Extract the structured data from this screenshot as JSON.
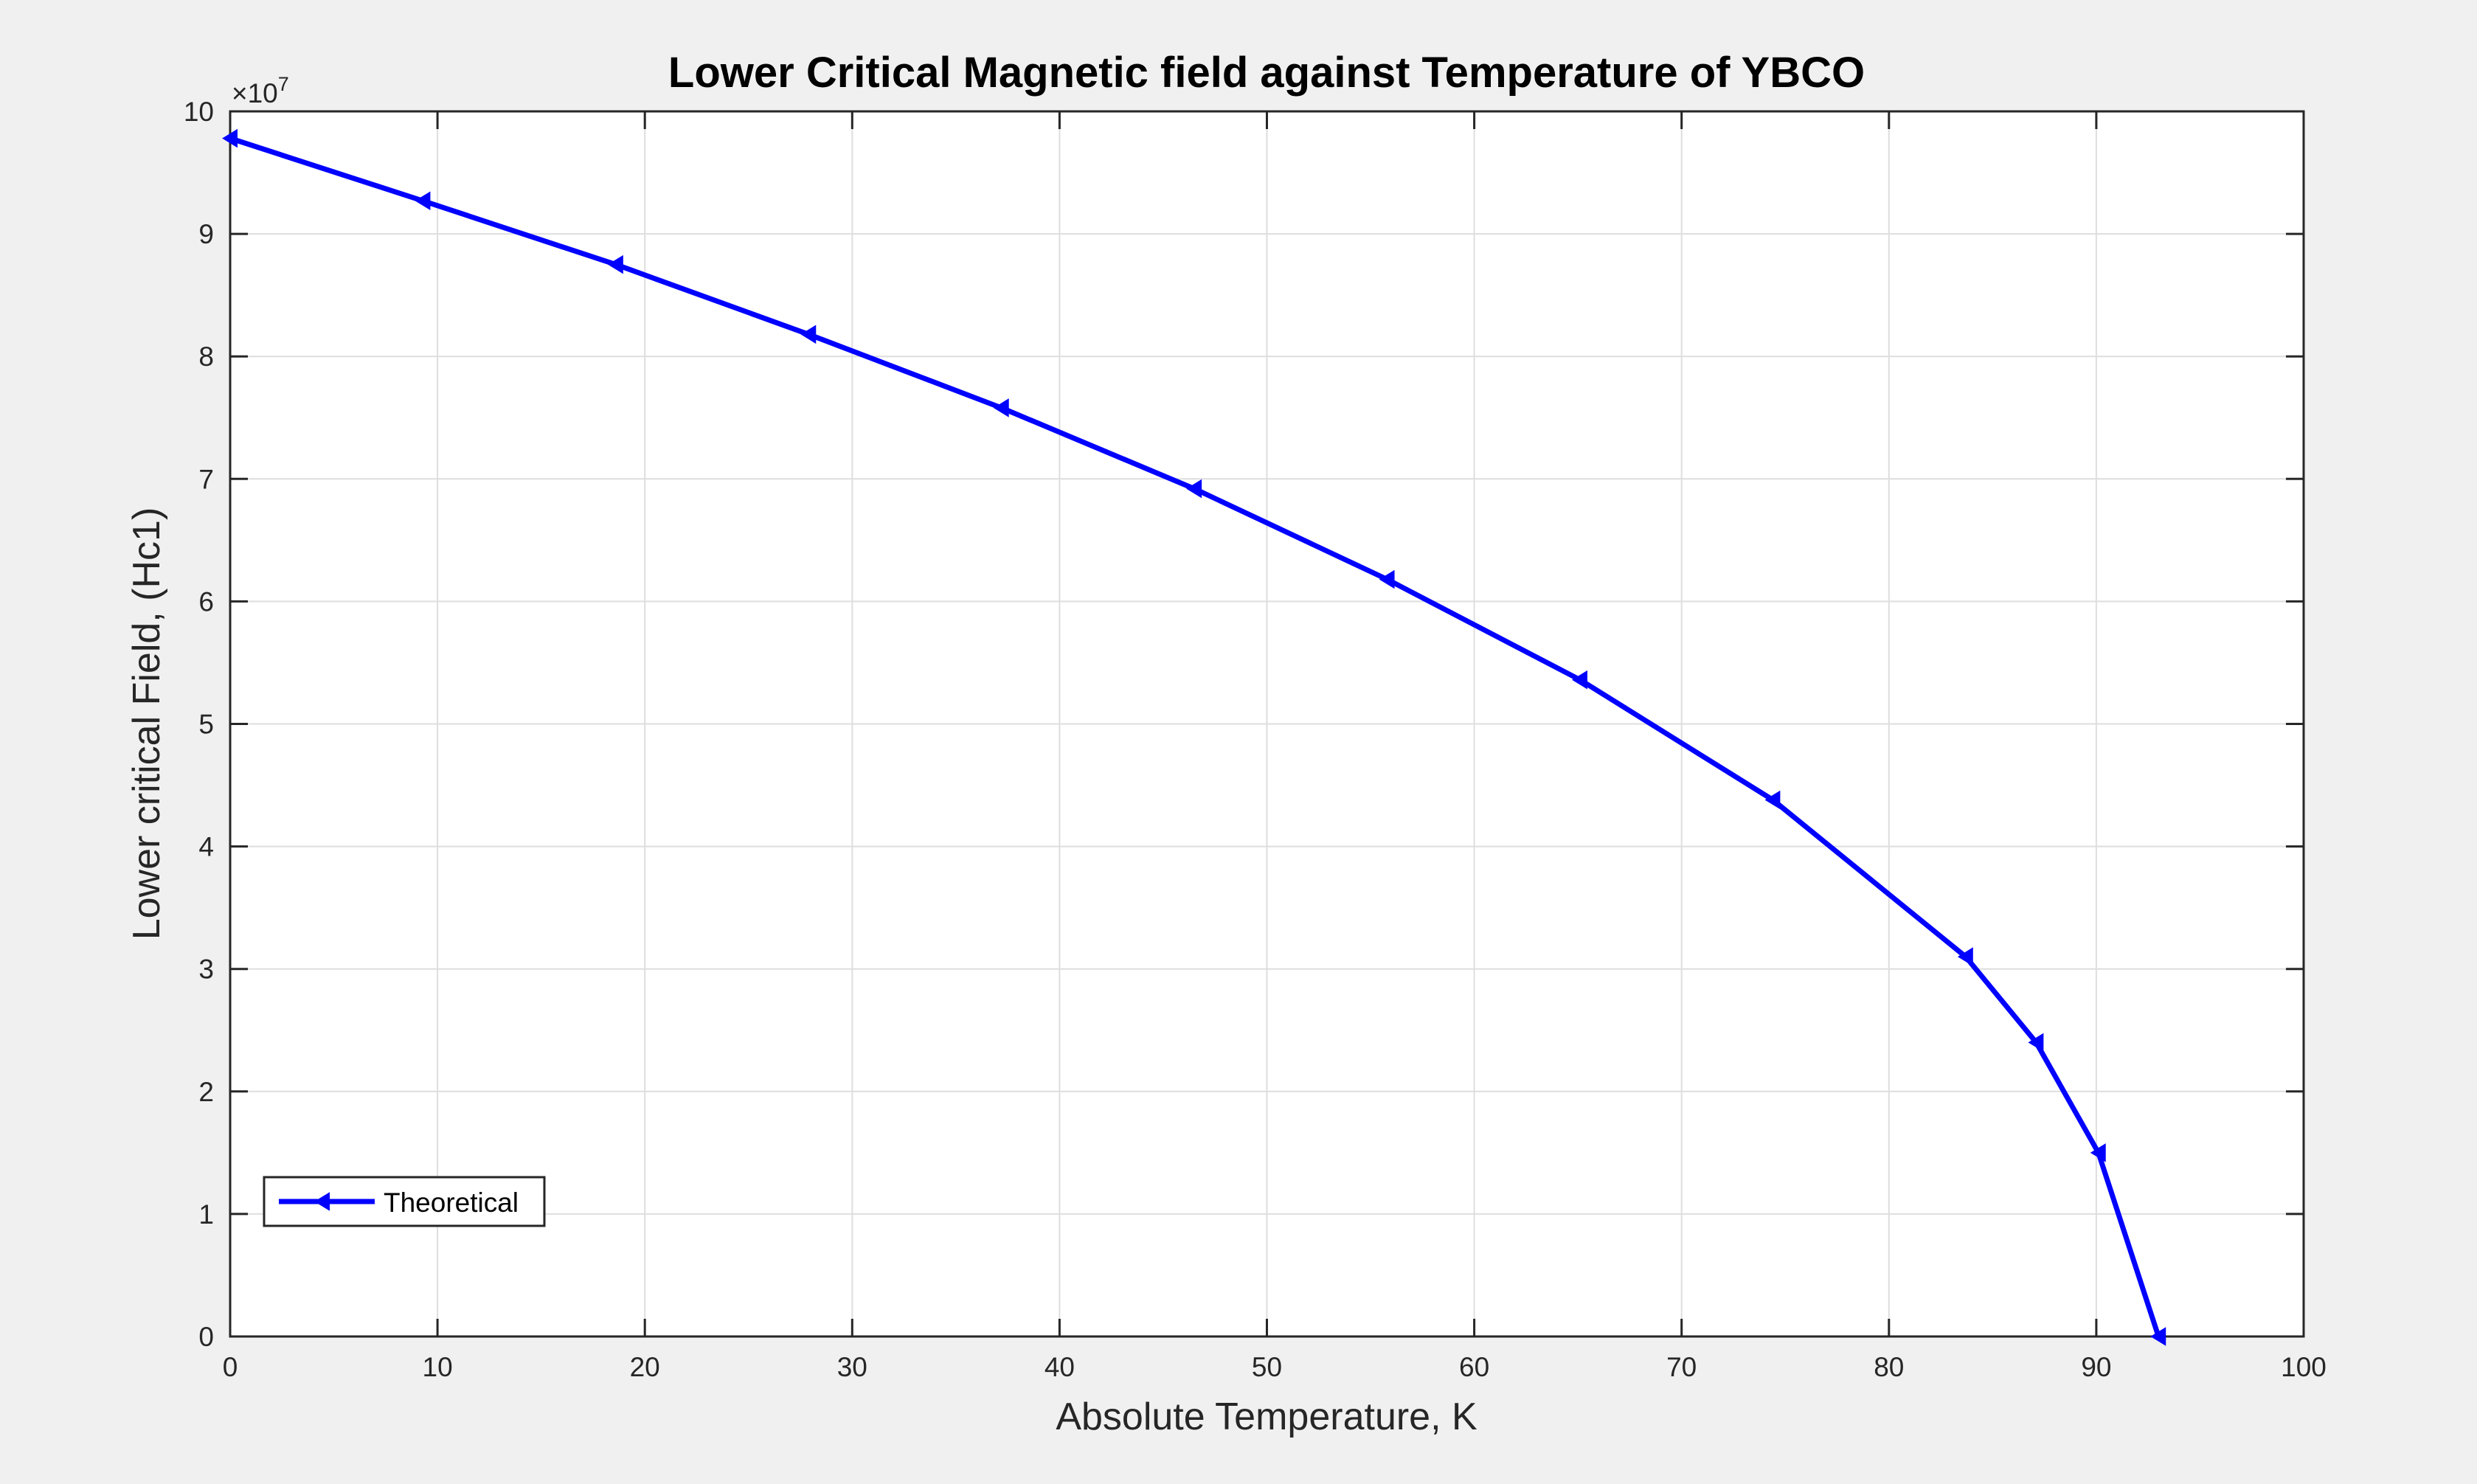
{
  "chart_data": {
    "type": "line",
    "title": "Lower Critical Magnetic field against Temperature of YBCO",
    "xlabel": "Absolute Temperature, K",
    "ylabel": "Lower critical Field, (Hc1)",
    "xlim": [
      0,
      100
    ],
    "ylim": [
      0,
      10
    ],
    "y_exponent_label": "×10",
    "y_exponent_power": "7",
    "x_ticks": [
      "0",
      "10",
      "20",
      "30",
      "40",
      "50",
      "60",
      "70",
      "80",
      "90",
      "100"
    ],
    "y_ticks": [
      "0",
      "1",
      "2",
      "3",
      "4",
      "5",
      "6",
      "7",
      "8",
      "9",
      "10"
    ],
    "grid": true,
    "legend_position": "bottom-left",
    "series": [
      {
        "name": "Theoretical",
        "color": "#0000ff",
        "marker": "left-triangle",
        "x": [
          0,
          9.3,
          18.6,
          27.9,
          37.2,
          46.5,
          55.8,
          65.1,
          74.4,
          83.7,
          87.1,
          90.1,
          93
        ],
        "y": [
          9.78,
          9.27,
          8.75,
          8.18,
          7.58,
          6.92,
          6.18,
          5.36,
          4.38,
          3.1,
          2.4,
          1.5,
          0
        ]
      }
    ]
  }
}
